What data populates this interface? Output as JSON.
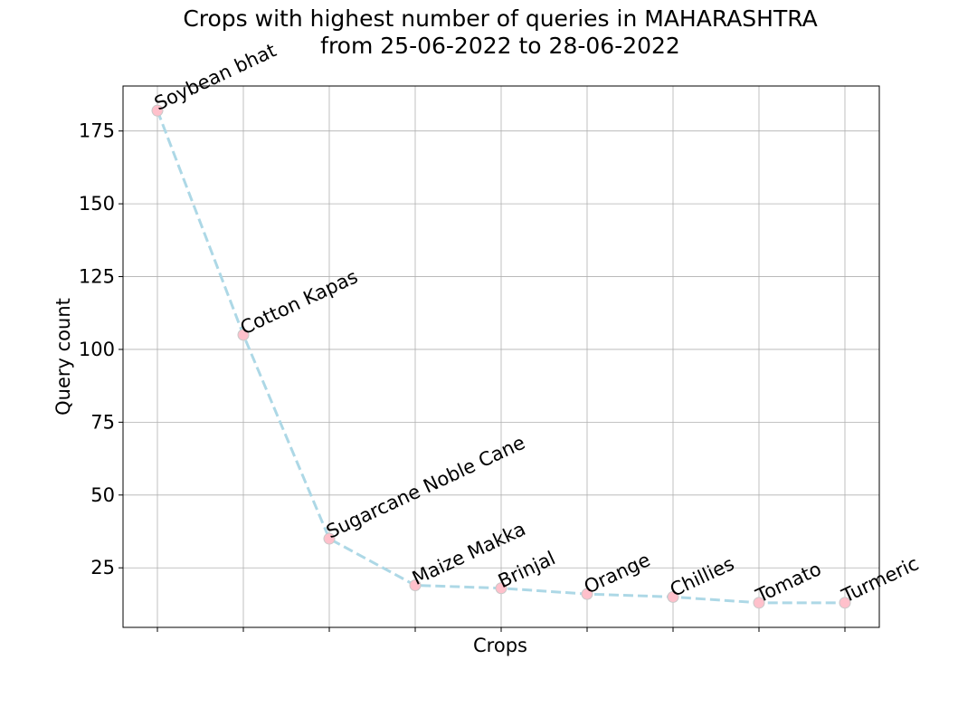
{
  "chart_data": {
    "type": "line",
    "title_lines": [
      "Crops with highest number of queries in MAHARASHTRA",
      "from 25-06-2022 to 28-06-2022"
    ],
    "xlabel": "Crops",
    "ylabel": "Query count",
    "categories": [
      "Soybean bhat",
      "Cotton Kapas",
      "Sugarcane Noble Cane",
      "Maize Makka",
      "Brinjal",
      "Orange",
      "Chillies",
      "Tomato",
      "Turmeric"
    ],
    "values": [
      182,
      105,
      35,
      19,
      18,
      16,
      15,
      13,
      13
    ],
    "ylim": [
      4.55,
      190.45
    ],
    "yticks": [
      25,
      50,
      75,
      100,
      125,
      150,
      175
    ],
    "grid": true,
    "line_color": "#add8e6",
    "line_style": "dashed",
    "marker_color": "#ffc0cb",
    "point_label_angle": -25
  }
}
